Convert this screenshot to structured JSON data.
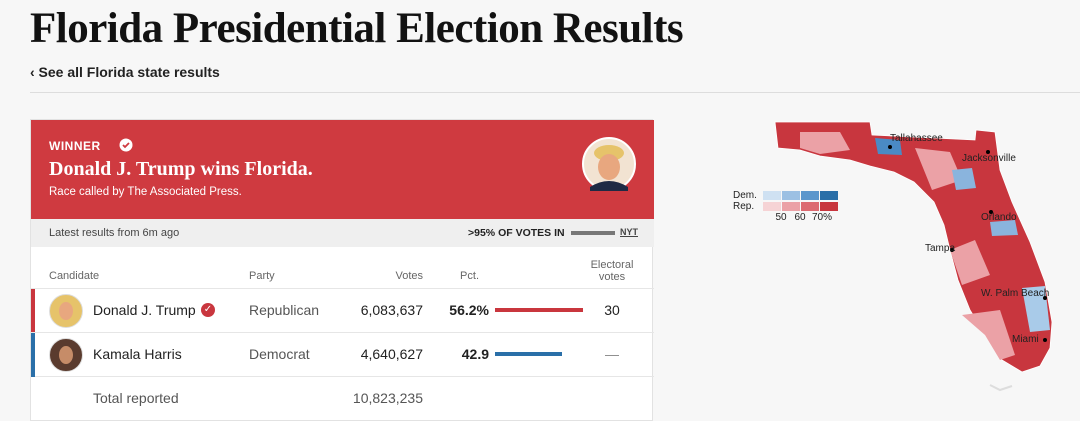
{
  "header": {
    "title": "Florida Presidential Election Results",
    "back_link": "‹ See all Florida state results"
  },
  "winner": {
    "label": "WINNER",
    "headline": "Donald J. Trump wins Florida.",
    "note": "Race called by The Associated Press."
  },
  "status": {
    "updated": "Latest results from 6m ago",
    "votes_in": ">95% OF VOTES IN",
    "source": "NYT"
  },
  "table": {
    "columns": [
      "Candidate",
      "Party",
      "Votes",
      "Pct.",
      "Electoral votes"
    ],
    "rows": [
      {
        "candidate": "Donald J. Trump",
        "party": "Republican",
        "votes": "6,083,637",
        "pct": 56.2,
        "pct_label": "56.2%",
        "electoral": "30",
        "color": "#c9363e"
      },
      {
        "candidate": "Kamala Harris",
        "party": "Democrat",
        "votes": "4,640,627",
        "pct": 42.9,
        "pct_label": "42.9",
        "electoral": "—",
        "color": "#2a6fa8"
      }
    ],
    "total": {
      "label": "Total reported",
      "votes": "10,823,235"
    }
  },
  "map": {
    "legend": {
      "dem": "Dem.",
      "rep": "Rep.",
      "ticks": [
        "50",
        "60",
        "70%"
      ]
    },
    "cities": [
      "Tallahassee",
      "Jacksonville",
      "Orlando",
      "Tampa",
      "W. Palm Beach",
      "Miami"
    ]
  }
}
